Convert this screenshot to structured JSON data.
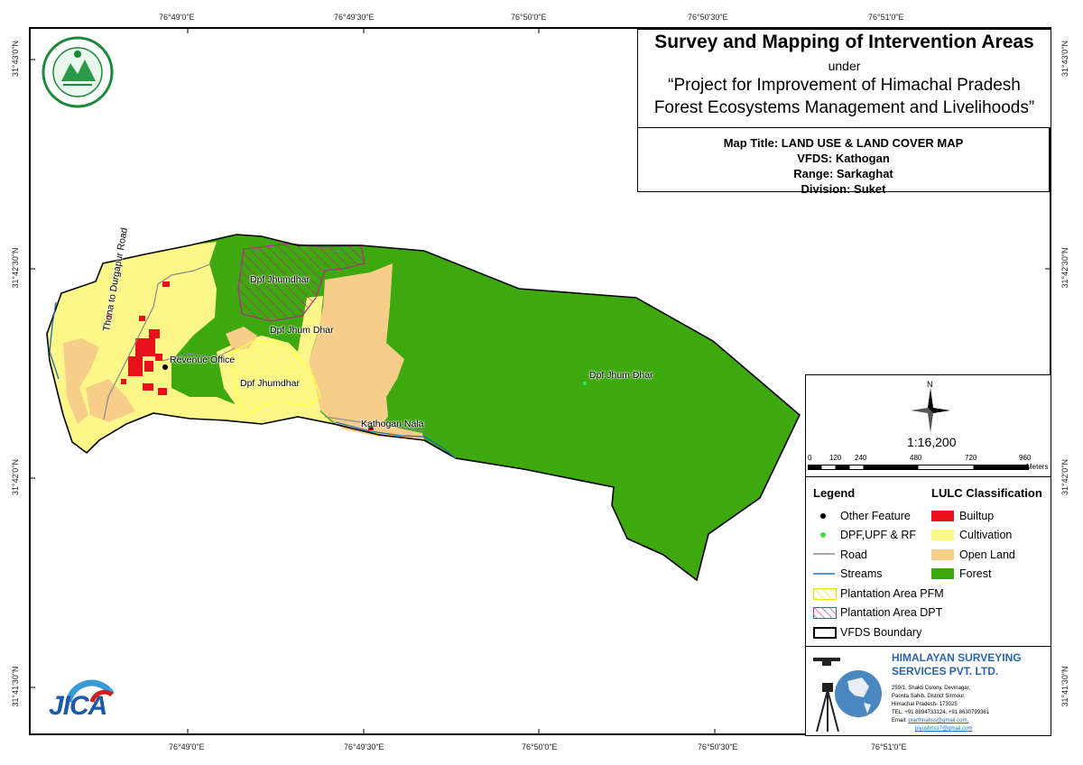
{
  "title": {
    "main": "Survey and Mapping of Intervention Areas",
    "under": "under",
    "project_line1": "“Project for Improvement of Himachal Pradesh",
    "project_line2": "Forest Ecosystems Management and Livelihoods”"
  },
  "map_info": {
    "map_title": "Map Title: LAND USE & LAND COVER MAP",
    "vfds": "VFDS: Kathogan",
    "range": "Range: Sarkaghat",
    "division": "Division: Suket"
  },
  "coordinates": {
    "top": [
      "76°49'0\"E",
      "76°49'30\"E",
      "76°50'0\"E",
      "76°50'30\"E",
      "76°51'0\"E"
    ],
    "bottom": [
      "76°49'0\"E",
      "76°49'30\"E",
      "76°50'0\"E",
      "76°50'30\"E",
      "76°51'0\"E"
    ],
    "left": [
      "31°43'0\"N",
      "31°42'30\"N",
      "31°42'0\"N",
      "31°41'30\"N"
    ],
    "right": [
      "31°43'0\"N",
      "31°42'30\"N",
      "31°42'0\"N",
      "31°41'30\"N"
    ]
  },
  "map_labels": {
    "road": "Thona to Durgapur Road",
    "revenue_office": "Revenue Office",
    "dpf_jhumdhar_top": "Dpf Jhumdhar",
    "dpf_jhum_dhar_mid": "Dpf Jhum Dhar",
    "dpf_jhumdhar_low": "Dpf Jhumdhar",
    "dpf_jhum_dhar_east": "Dpf Jhum Dhar",
    "kathogan_nala": "Kathogan Nala"
  },
  "scale": {
    "north": "N",
    "ratio": "1:16,200",
    "ticks": [
      "0",
      "120",
      "240",
      "480",
      "720",
      "960"
    ],
    "unit": "Meters"
  },
  "legend": {
    "heading": "Legend",
    "items": [
      {
        "label": "Other Feature",
        "symbol": "black-point"
      },
      {
        "label": "DPF,UPF & RF",
        "symbol": "green-point"
      },
      {
        "label": "Road",
        "symbol": "grey-line"
      },
      {
        "label": "Streams",
        "symbol": "blue-line"
      },
      {
        "label": "Plantation Area PFM",
        "symbol": "yellow-hatch"
      },
      {
        "label": "Plantation Area DPT",
        "symbol": "magenta-hatch"
      },
      {
        "label": "VFDS Boundary",
        "symbol": "black-outline"
      }
    ],
    "lulc_heading": "LULC Classification",
    "lulc": [
      {
        "label": "Builtup",
        "color": "#e8101a"
      },
      {
        "label": "Cultivation",
        "color": "#fdf78a"
      },
      {
        "label": "Open Land",
        "color": "#f7cd8a"
      },
      {
        "label": "Forest",
        "color": "#3ea80f"
      }
    ]
  },
  "company": {
    "name_line1": "HIMALAYAN SURVEYING",
    "name_line2": "SERVICES PVT. LTD.",
    "address": [
      "259/1, Shakti Colony, Devinagar,",
      "Paonta Sahib, District Sirmour,",
      "Himachal Pradesh- 173025"
    ],
    "tel": "TEL: +91 8894733124, +91 8630799361",
    "email_label": "Email:",
    "email1": "prarthnahss@gmail.com,",
    "email2": "piyushhss7@gmail.com"
  },
  "logos": {
    "jica_text": "JICA"
  },
  "colors": {
    "forest": "#3ea80f",
    "cultivation": "#fdf78a",
    "open_land": "#f7cd8a",
    "builtup": "#e8101a",
    "stream": "#1e6fb5",
    "road": "#8a8a8a",
    "dpt_hatch": "#b03080",
    "pfm_hatch": "#ffff40"
  }
}
